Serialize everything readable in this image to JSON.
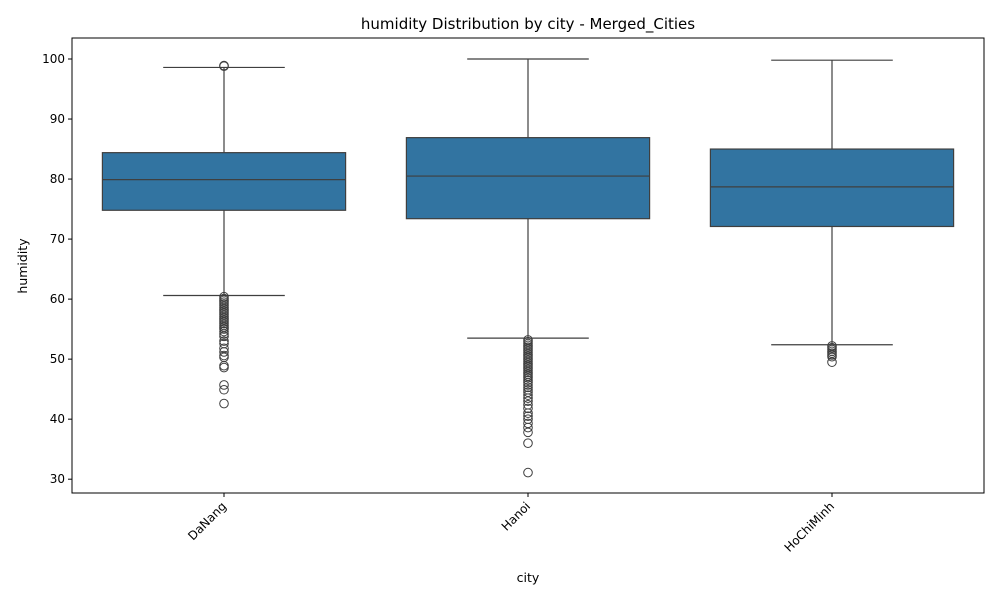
{
  "chart_data": {
    "type": "box",
    "title": "humidity Distribution by city - Merged_Cities",
    "xlabel": "city",
    "ylabel": "humidity",
    "ylim": [
      27.7,
      103.5
    ],
    "yticks": [
      30,
      40,
      50,
      60,
      70,
      80,
      90,
      100
    ],
    "grid": false,
    "legend": "none",
    "box_color": "#3274a1",
    "line_color": "#3f3f3f",
    "categories": [
      "DaNang",
      "Hanoi",
      "HoChiMinh"
    ],
    "boxes": [
      {
        "category": "DaNang",
        "whisker_low": 60.6,
        "q1": 74.8,
        "median": 79.9,
        "q3": 84.4,
        "whisker_high": 98.6,
        "outliers": [
          98.9,
          98.8,
          60.4,
          60.1,
          59.8,
          59.5,
          59.2,
          58.9,
          58.6,
          58.3,
          58.0,
          57.7,
          57.4,
          57.1,
          56.8,
          56.5,
          56.2,
          55.9,
          55.6,
          55.3,
          55.0,
          54.6,
          54.2,
          53.8,
          53.0,
          52.6,
          51.8,
          51.2,
          50.6,
          50.3,
          48.9,
          48.6,
          45.7,
          44.9,
          42.6
        ]
      },
      {
        "category": "Hanoi",
        "whisker_low": 53.5,
        "q1": 73.4,
        "median": 80.5,
        "q3": 86.9,
        "whisker_high": 100.0,
        "outliers": [
          53.2,
          52.9,
          52.6,
          52.3,
          52.0,
          51.7,
          51.4,
          51.1,
          50.8,
          50.5,
          50.2,
          49.9,
          49.6,
          49.3,
          49.0,
          48.7,
          48.4,
          48.1,
          47.8,
          47.5,
          47.2,
          46.9,
          46.5,
          46.1,
          45.7,
          45.3,
          44.9,
          44.5,
          44.0,
          43.5,
          43.0,
          42.4,
          41.8,
          41.0,
          40.5,
          40.0,
          39.3,
          38.6,
          37.8,
          36.0,
          31.1
        ]
      },
      {
        "category": "HoChiMinh",
        "whisker_low": 52.4,
        "q1": 72.1,
        "median": 78.7,
        "q3": 85.0,
        "whisker_high": 99.8,
        "outliers": [
          52.2,
          51.9,
          51.6,
          51.3,
          51.0,
          50.7,
          50.4,
          49.5
        ]
      }
    ]
  }
}
